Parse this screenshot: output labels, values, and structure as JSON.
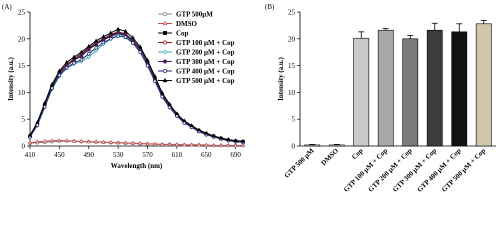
{
  "chart_data": [
    {
      "type": "line",
      "panel_label": "(A)",
      "xlabel": "Wavelength (nm)",
      "ylabel": "Intensity (a.u.)",
      "x": [
        410,
        420,
        430,
        440,
        450,
        460,
        470,
        480,
        490,
        500,
        510,
        520,
        530,
        540,
        550,
        560,
        570,
        580,
        590,
        600,
        610,
        620,
        630,
        640,
        650,
        660,
        670,
        680,
        690,
        700
      ],
      "xlim": [
        410,
        700
      ],
      "xticks": [
        410,
        450,
        490,
        530,
        570,
        610,
        650,
        690
      ],
      "ylim": [
        0,
        25
      ],
      "yticks": [
        0,
        5,
        10,
        15,
        20,
        25
      ],
      "legend": "top-right",
      "series": [
        {
          "name": "GTP 500μM",
          "color": "#888888",
          "marker": "circle-open",
          "values": [
            0.5,
            0.6,
            0.7,
            0.8,
            0.9,
            0.9,
            0.9,
            0.8,
            0.8,
            0.7,
            0.7,
            0.6,
            0.6,
            0.5,
            0.5,
            0.4,
            0.4,
            0.3,
            0.3,
            0.3,
            0.2,
            0.2,
            0.2,
            0.2,
            0.1,
            0.1,
            0.1,
            0.1,
            0.1,
            0.1
          ]
        },
        {
          "name": "DMSO",
          "color": "#c0504d",
          "marker": "triangle-open",
          "values": [
            0.6,
            0.8,
            0.9,
            1.0,
            1.0,
            1.0,
            0.9,
            0.9,
            0.8,
            0.8,
            0.7,
            0.7,
            0.6,
            0.6,
            0.5,
            0.5,
            0.4,
            0.4,
            0.3,
            0.3,
            0.3,
            0.2,
            0.2,
            0.2,
            0.2,
            0.1,
            0.1,
            0.1,
            0.1,
            0.1
          ]
        },
        {
          "name": "Cop",
          "color": "#000000",
          "marker": "square",
          "values": [
            1.8,
            4.0,
            7.5,
            11.0,
            13.5,
            15.0,
            16.0,
            16.8,
            18.0,
            19.0,
            19.8,
            20.5,
            21.0,
            20.6,
            19.5,
            18.0,
            15.5,
            12.5,
            9.5,
            7.5,
            5.8,
            4.5,
            3.6,
            2.8,
            2.2,
            1.8,
            1.4,
            1.1,
            0.9,
            0.8
          ]
        },
        {
          "name": "GTP 100 μM + Cop",
          "color": "#8b1a1a",
          "marker": "circle-open",
          "values": [
            1.9,
            4.2,
            7.8,
            11.2,
            13.8,
            15.2,
            16.3,
            17.2,
            18.3,
            19.3,
            20.0,
            20.8,
            21.3,
            20.9,
            19.8,
            18.2,
            15.7,
            12.7,
            9.7,
            7.6,
            5.9,
            4.6,
            3.7,
            2.9,
            2.3,
            1.8,
            1.4,
            1.1,
            0.9,
            0.8
          ]
        },
        {
          "name": "GTP 200 μM + Cop",
          "color": "#3fa9b5",
          "marker": "diamond-open",
          "values": [
            1.7,
            3.8,
            7.2,
            10.6,
            13.0,
            14.5,
            15.3,
            15.8,
            16.6,
            17.8,
            19.0,
            20.0,
            20.8,
            20.5,
            19.3,
            17.6,
            15.0,
            12.2,
            9.2,
            7.2,
            5.6,
            4.4,
            3.5,
            2.7,
            2.1,
            1.7,
            1.3,
            1.0,
            0.9,
            0.7
          ]
        },
        {
          "name": "GTP 300 μM + Cop",
          "color": "#4b1f5e",
          "marker": "circle",
          "values": [
            1.8,
            4.1,
            7.6,
            11.0,
            13.6,
            15.0,
            16.1,
            16.9,
            18.1,
            19.1,
            19.9,
            20.6,
            21.2,
            20.8,
            19.6,
            18.1,
            15.6,
            12.6,
            9.6,
            7.5,
            5.8,
            4.5,
            3.6,
            2.8,
            2.2,
            1.8,
            1.4,
            1.1,
            0.9,
            0.8
          ]
        },
        {
          "name": "GTP 400 μM + Cop",
          "color": "#1f2a6e",
          "marker": "circle-open",
          "values": [
            1.7,
            3.9,
            7.3,
            10.8,
            13.2,
            14.6,
            15.5,
            16.1,
            17.2,
            18.3,
            19.3,
            20.0,
            20.5,
            20.3,
            19.2,
            17.5,
            15.0,
            12.1,
            9.2,
            7.2,
            5.6,
            4.3,
            3.5,
            2.7,
            2.1,
            1.7,
            1.3,
            1.0,
            0.8,
            0.7
          ]
        },
        {
          "name": "GTP 500 μM + Cop",
          "color": "#000000",
          "marker": "triangle",
          "values": [
            2.0,
            4.4,
            8.0,
            11.5,
            14.0,
            15.6,
            16.6,
            17.5,
            18.6,
            19.6,
            20.4,
            21.1,
            21.8,
            21.4,
            20.2,
            18.5,
            16.0,
            13.0,
            9.9,
            7.8,
            6.0,
            4.7,
            3.8,
            3.0,
            2.4,
            1.9,
            1.5,
            1.2,
            1.0,
            0.9
          ]
        }
      ]
    },
    {
      "type": "bar",
      "panel_label": "(B)",
      "ylabel": "Intensity (a.u.)",
      "categories": [
        "GTP 500 μM",
        "DMSO",
        "Cop",
        "GTP 100 μM + Cop",
        "GTP 200 μM + Cop",
        "GTP 300 μM + Cop",
        "GTP 400 μM + Cop",
        "GTP 500 μM + Cop"
      ],
      "values": [
        0.2,
        0.2,
        20.1,
        21.6,
        20.0,
        21.6,
        21.3,
        22.8
      ],
      "errors": [
        0.1,
        0.1,
        1.2,
        0.3,
        0.6,
        1.3,
        1.5,
        0.6
      ],
      "colors": [
        "#ffffff",
        "#ffffff",
        "#c8c8c8",
        "#a8a8a8",
        "#7a7a7a",
        "#3c3c3c",
        "#111111",
        "#cfc7a8"
      ],
      "ylim": [
        0,
        25
      ],
      "yticks": [
        0,
        5,
        10,
        15,
        20,
        25
      ]
    }
  ]
}
